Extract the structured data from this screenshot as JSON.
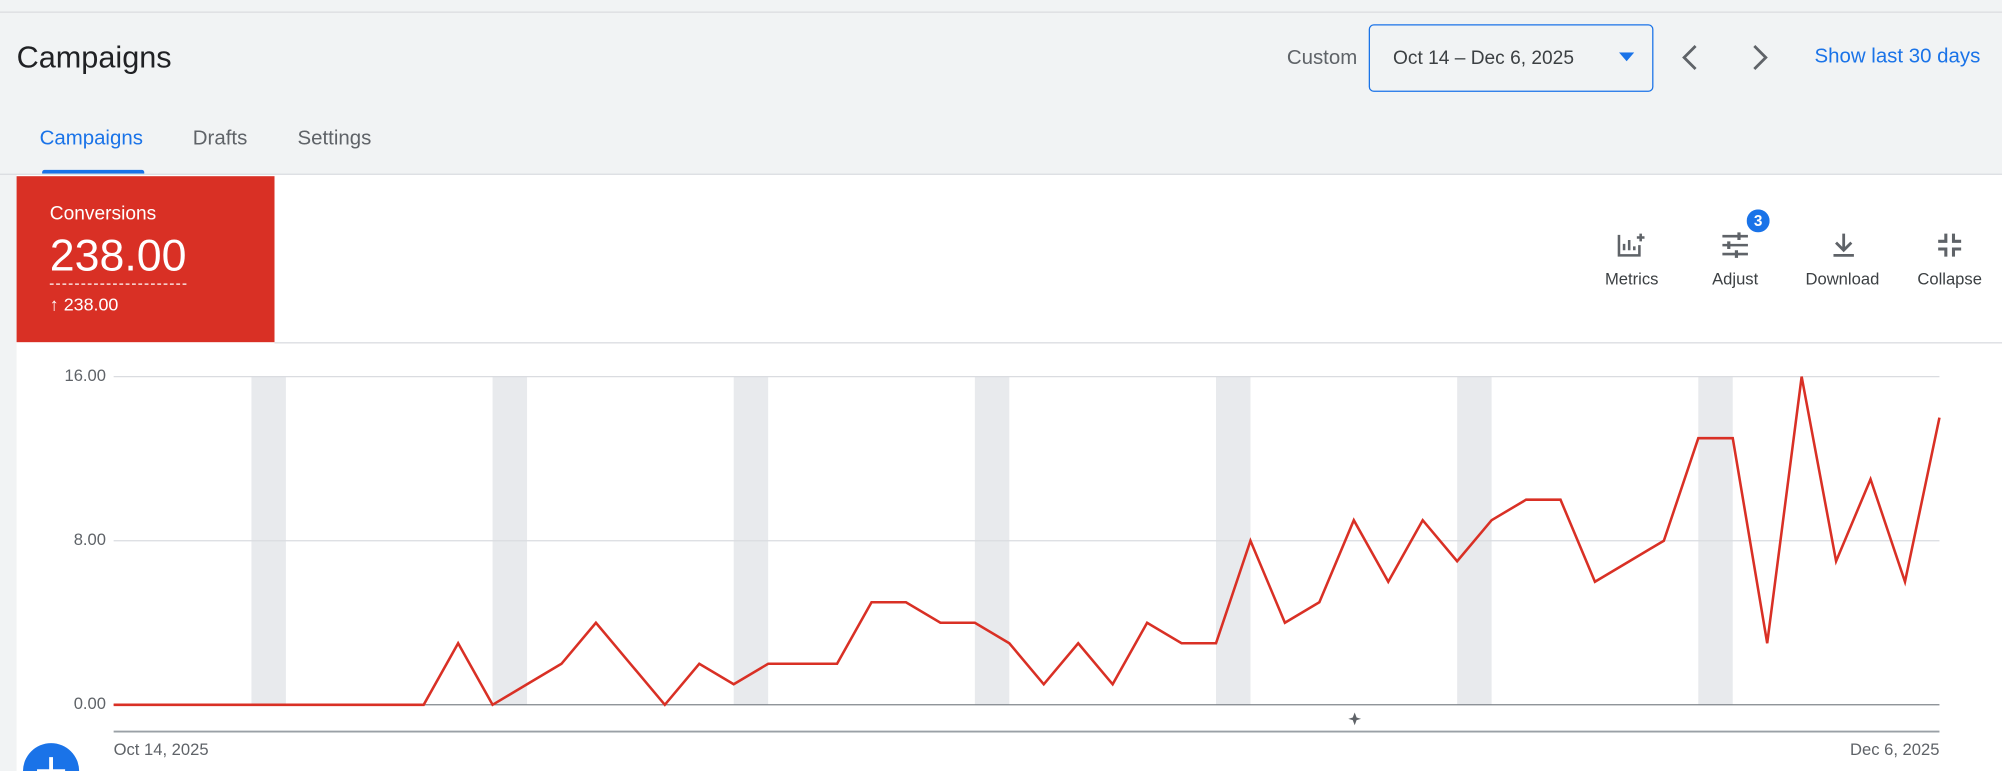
{
  "header": {
    "title": "Campaigns",
    "range_label": "Custom",
    "date_range": "Oct 14 – Dec 6, 2025",
    "shortcut": "Show last 30 days"
  },
  "tabs": [
    "Campaigns",
    "Drafts",
    "Settings"
  ],
  "scorecard": {
    "metric": "Conversions",
    "value": "238.00",
    "change": "238.00"
  },
  "toolbar": {
    "items": [
      "Metrics",
      "Adjust",
      "Download",
      "Collapse"
    ],
    "adjust_badge": "3"
  },
  "chart_data": {
    "type": "line",
    "categories": [
      "Oct 14, 2025",
      null,
      null,
      null,
      null,
      null,
      null,
      null,
      null,
      null,
      null,
      null,
      null,
      null,
      null,
      null,
      null,
      null,
      null,
      null,
      null,
      null,
      null,
      null,
      null,
      null,
      null,
      null,
      null,
      null,
      null,
      null,
      null,
      null,
      null,
      null,
      null,
      null,
      null,
      null,
      null,
      null,
      null,
      null,
      null,
      null,
      null,
      null,
      null,
      null,
      null,
      null,
      null,
      "Dec 6, 2025"
    ],
    "series": [
      {
        "name": "Conversions",
        "color": "#d93025",
        "values": [
          0,
          0,
          0,
          0,
          0,
          0,
          0,
          0,
          0,
          0,
          3,
          0,
          1,
          2,
          4,
          2,
          0,
          2,
          1,
          2,
          2,
          2,
          5,
          5,
          4,
          4,
          3,
          1,
          3,
          1,
          4,
          3,
          3,
          8,
          4,
          5,
          9,
          6,
          9,
          7,
          9,
          10,
          10,
          6,
          7,
          8,
          13,
          13,
          3,
          16,
          7,
          11,
          6,
          14
        ]
      }
    ],
    "ylim": [
      0,
      16
    ],
    "yticks": [
      {
        "value": 0,
        "label": "0.00"
      },
      {
        "value": 8,
        "label": "8.00"
      },
      {
        "value": 16,
        "label": "16.00"
      }
    ],
    "grid": true
  }
}
